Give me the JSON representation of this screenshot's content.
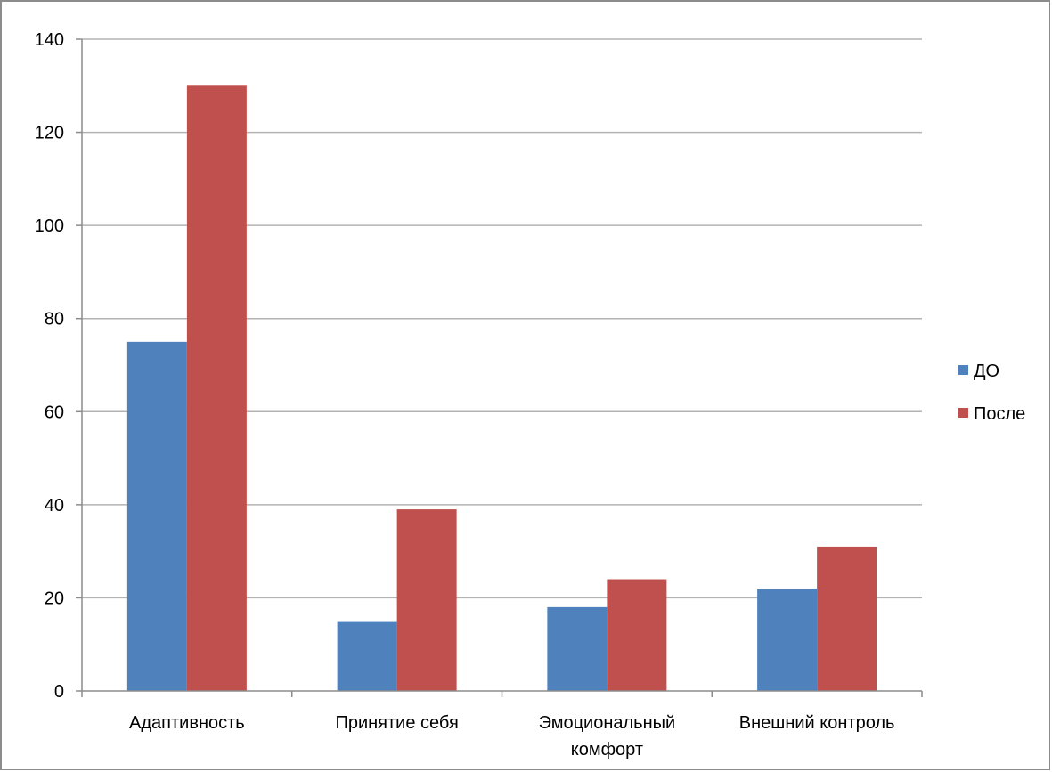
{
  "chart_data": {
    "type": "bar",
    "categories": [
      [
        "Адаптивность"
      ],
      [
        "Принятие себя"
      ],
      [
        "Эмоциональный",
        "комфорт"
      ],
      [
        "Внешний контроль"
      ]
    ],
    "series": [
      {
        "name": "ДО",
        "color": "#4f81bd",
        "values": [
          75,
          15,
          18,
          22
        ]
      },
      {
        "name": "После",
        "color": "#c0504d",
        "values": [
          130,
          39,
          24,
          31
        ]
      }
    ],
    "yticks": [
      "0",
      "20",
      "40",
      "60",
      "80",
      "100",
      "120",
      "140"
    ],
    "ylim": [
      0,
      140
    ],
    "grid": true,
    "legend": "right"
  }
}
